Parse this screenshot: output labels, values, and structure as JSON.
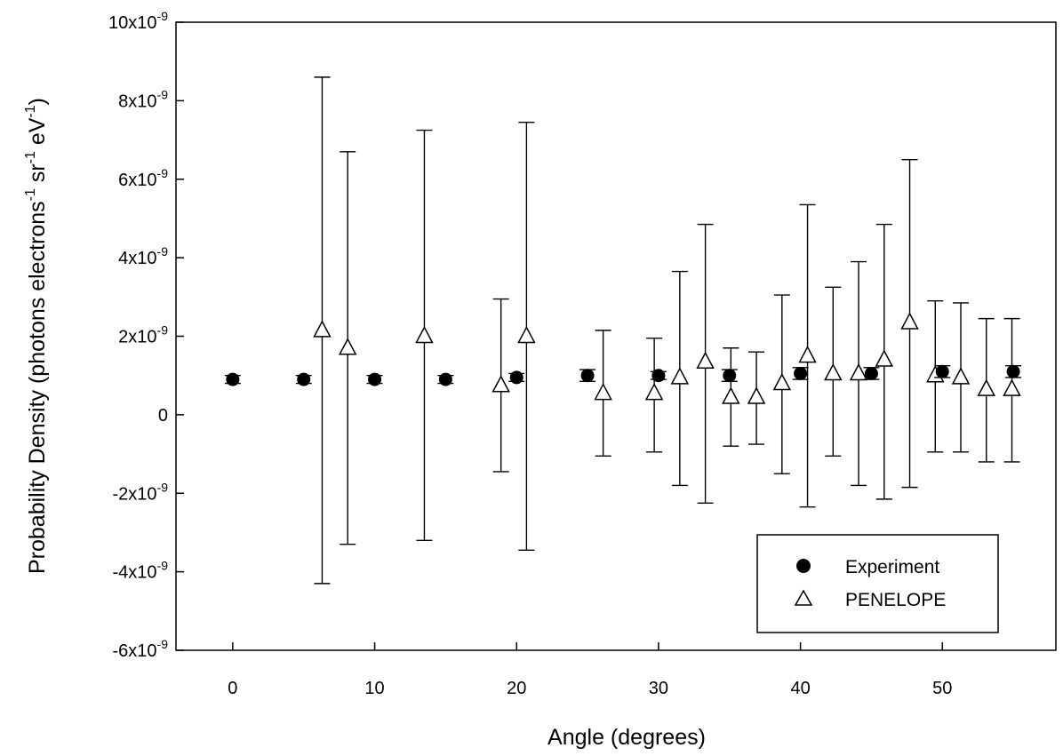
{
  "chart_data": {
    "type": "scatter",
    "title": "",
    "xlabel": "Angle (degrees)",
    "ylabel": "Probability Density (photons electrons-1 sr-1 eV-1)",
    "ylabel_parts": [
      "Probability Density (photons electrons",
      "-1",
      " sr",
      "-1",
      " eV",
      "-1",
      ")"
    ],
    "xlim": [
      -4,
      58
    ],
    "ylim": [
      -6e-09,
      1e-08
    ],
    "x_ticks": [
      0,
      10,
      20,
      30,
      40,
      50
    ],
    "x_tick_labels": [
      "0",
      "10",
      "20",
      "30",
      "40",
      "50"
    ],
    "y_ticks": [
      -6e-09,
      -4e-09,
      -2e-09,
      0,
      2e-09,
      4e-09,
      6e-09,
      8e-09,
      1e-08
    ],
    "y_tick_labels": [
      {
        "mantissa": "-6x10",
        "exp": "-9"
      },
      {
        "mantissa": "-4x10",
        "exp": "-9"
      },
      {
        "mantissa": "-2x10",
        "exp": "-9"
      },
      {
        "mantissa": "0",
        "exp": ""
      },
      {
        "mantissa": "2x10",
        "exp": "-9"
      },
      {
        "mantissa": "4x10",
        "exp": "-9"
      },
      {
        "mantissa": "6x10",
        "exp": "-9"
      },
      {
        "mantissa": "8x10",
        "exp": "-9"
      },
      {
        "mantissa": "10x10",
        "exp": "-9"
      }
    ],
    "grid": false,
    "legend_position": "bottom-right",
    "series": [
      {
        "name": "Experiment",
        "marker": "filled-circle",
        "points": [
          {
            "x": 0,
            "y": 9e-10,
            "err": 1e-10
          },
          {
            "x": 5,
            "y": 9e-10,
            "err": 1e-10
          },
          {
            "x": 10,
            "y": 9e-10,
            "err": 1e-10
          },
          {
            "x": 15,
            "y": 9e-10,
            "err": 1e-10
          },
          {
            "x": 20,
            "y": 9.5e-10,
            "err": 1e-10
          },
          {
            "x": 25,
            "y": 1e-09,
            "err": 1.5e-10
          },
          {
            "x": 30,
            "y": 1e-09,
            "err": 1e-10
          },
          {
            "x": 35,
            "y": 1e-09,
            "err": 1.5e-10
          },
          {
            "x": 40,
            "y": 1.05e-09,
            "err": 1.5e-10
          },
          {
            "x": 45,
            "y": 1.05e-09,
            "err": 1.5e-10
          },
          {
            "x": 50,
            "y": 1.1e-09,
            "err": 1.5e-10
          },
          {
            "x": 55,
            "y": 1.1e-09,
            "err": 1.5e-10
          }
        ]
      },
      {
        "name": "PENELOPE",
        "marker": "open-triangle",
        "points": [
          {
            "x": 6.3,
            "y": 2.15e-09,
            "lo": -4.3e-09,
            "hi": 8.6e-09
          },
          {
            "x": 8.1,
            "y": 1.7e-09,
            "lo": -3.3e-09,
            "hi": 6.7e-09
          },
          {
            "x": 13.5,
            "y": 2e-09,
            "lo": -3.2e-09,
            "hi": 7.25e-09
          },
          {
            "x": 18.9,
            "y": 7.5e-10,
            "lo": -1.45e-09,
            "hi": 2.95e-09
          },
          {
            "x": 20.7,
            "y": 2e-09,
            "lo": -3.45e-09,
            "hi": 7.45e-09
          },
          {
            "x": 26.1,
            "y": 5.5e-10,
            "lo": -1.05e-09,
            "hi": 2.15e-09
          },
          {
            "x": 29.7,
            "y": 5.5e-10,
            "lo": -9.5e-10,
            "hi": 1.95e-09
          },
          {
            "x": 31.5,
            "y": 9.5e-10,
            "lo": -1.8e-09,
            "hi": 3.65e-09
          },
          {
            "x": 33.3,
            "y": 1.35e-09,
            "lo": -2.25e-09,
            "hi": 4.85e-09
          },
          {
            "x": 35.1,
            "y": 4.5e-10,
            "lo": -8e-10,
            "hi": 1.7e-09
          },
          {
            "x": 36.9,
            "y": 4.5e-10,
            "lo": -7.5e-10,
            "hi": 1.6e-09
          },
          {
            "x": 38.7,
            "y": 8e-10,
            "lo": -1.5e-09,
            "hi": 3.05e-09
          },
          {
            "x": 40.5,
            "y": 1.5e-09,
            "lo": -2.35e-09,
            "hi": 5.35e-09
          },
          {
            "x": 42.3,
            "y": 1.05e-09,
            "lo": -1.05e-09,
            "hi": 3.25e-09
          },
          {
            "x": 44.1,
            "y": 1.05e-09,
            "lo": -1.8e-09,
            "hi": 3.9e-09
          },
          {
            "x": 45.9,
            "y": 1.4e-09,
            "lo": -2.15e-09,
            "hi": 4.85e-09
          },
          {
            "x": 47.7,
            "y": 2.35e-09,
            "lo": -1.85e-09,
            "hi": 6.5e-09
          },
          {
            "x": 49.5,
            "y": 1e-09,
            "lo": -9.5e-10,
            "hi": 2.9e-09
          },
          {
            "x": 51.3,
            "y": 9.5e-10,
            "lo": -9.5e-10,
            "hi": 2.85e-09
          },
          {
            "x": 53.1,
            "y": 6.5e-10,
            "lo": -1.2e-09,
            "hi": 2.45e-09
          },
          {
            "x": 54.9,
            "y": 6.5e-10,
            "lo": -1.2e-09,
            "hi": 2.45e-09
          }
        ]
      }
    ]
  }
}
